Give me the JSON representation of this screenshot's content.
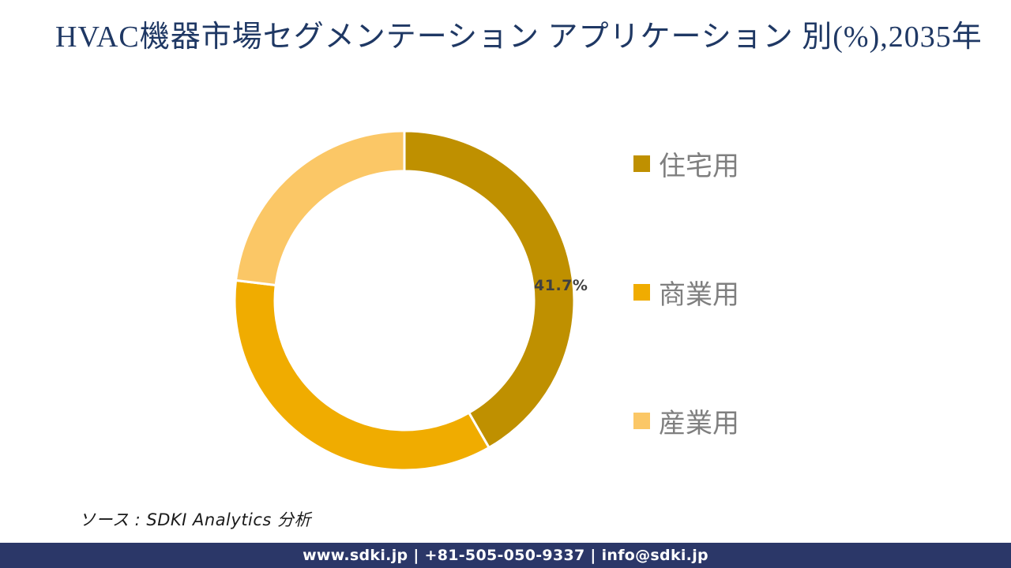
{
  "header": {
    "title": "HVAC機器市場セグメンテーション アプリケーション 別(%),2035年",
    "title_color": "#1F3864"
  },
  "chart_data": {
    "type": "pie",
    "subtype": "donut",
    "title": "HVAC機器市場セグメンテーション アプリケーション 別(%),2035年",
    "unit": "%",
    "categories": [
      "住宅用",
      "商業用",
      "産業用"
    ],
    "values": [
      41.7,
      35.2,
      23.1
    ],
    "colors": [
      "#BF9000",
      "#F0AC00",
      "#FBC766"
    ],
    "data_labels": [
      "41.7%",
      "",
      ""
    ],
    "visible_data_label": "41.7%",
    "data_label_color": "#404040",
    "legend_position": "right",
    "legend_text_color": "#7F7F7F",
    "start_angle_deg": 0,
    "outer_radius_px": 215,
    "inner_radius_px": 164,
    "segment_gap_color": "#FFFFFF"
  },
  "source_line": {
    "text": "ソース : SDKI Analytics 分析"
  },
  "footer": {
    "text": "www.sdki.jp | +81-505-050-9337 | info@sdki.jp",
    "background": "#2B3768",
    "text_color": "#FFFFFF"
  }
}
